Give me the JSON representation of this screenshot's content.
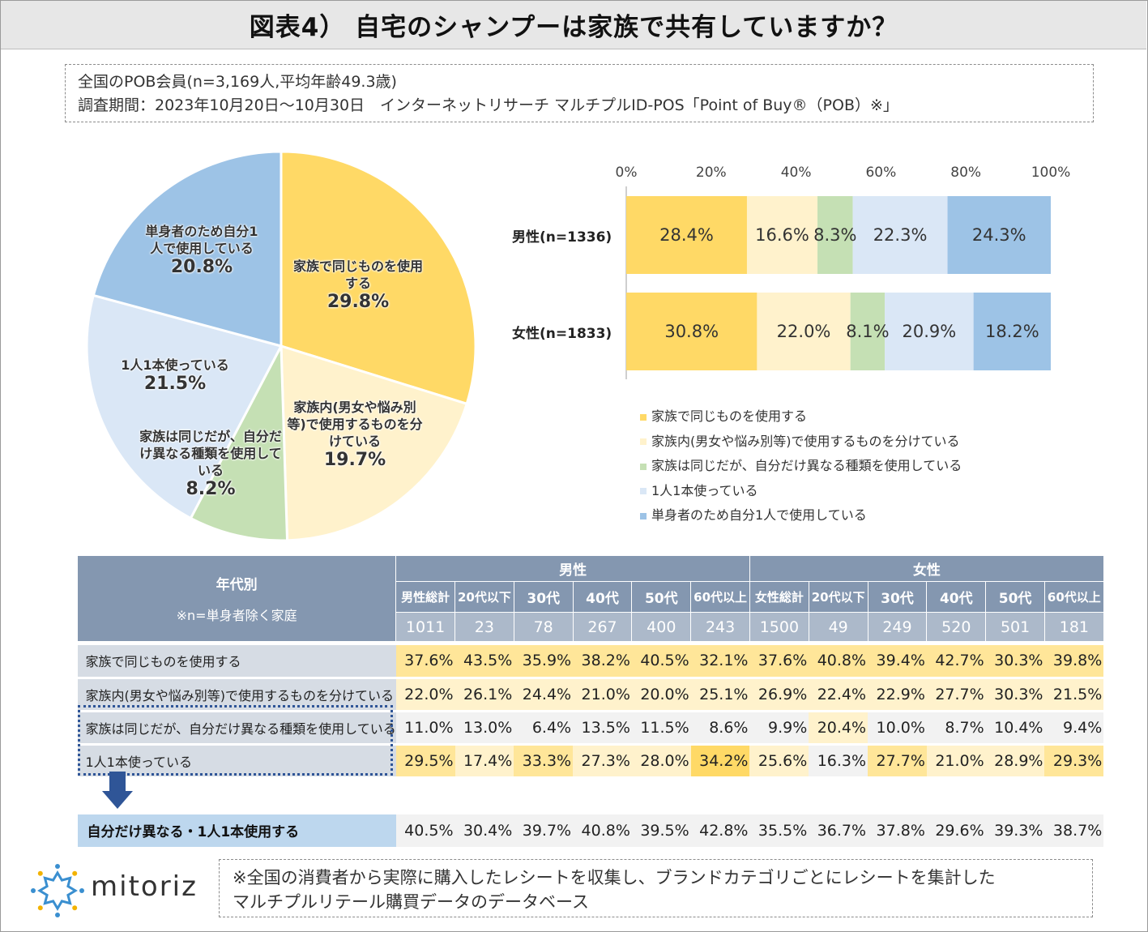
{
  "title": "図表4） 自宅のシャンプーは家族で共有していますか？",
  "info": {
    "line1": "全国のPOB会員(n=3,169人,平均年齢49.3歳)",
    "line2": "調査期間：2023年10月20日～10月30日　インターネットリサーチ マルチプルID-POS「Point of Buy®（POB）※」"
  },
  "colors": {
    "c1": "#ffd966",
    "c2": "#fff2cc",
    "c3": "#c5e0b4",
    "c4": "#dae7f6",
    "c5": "#9dc3e6",
    "header": "#8497b0",
    "subheader": "#acb9ca",
    "rowlabel": "#d6dce4",
    "summarylabel": "#bdd7ee",
    "arrow": "#2f5597"
  },
  "chart_data": [
    {
      "type": "pie",
      "slices": [
        {
          "label": "家族で同じものを使用する",
          "value": 29.8,
          "value_label": "29.8%"
        },
        {
          "label": "家族内(男女や悩み別等)で使用するものを分けている",
          "value": 19.7,
          "value_label": "19.7%"
        },
        {
          "label": "家族は同じだが、自分だけ異なる種類を使用している",
          "value": 8.2,
          "value_label": "8.2%"
        },
        {
          "label": "1人1本使っている",
          "value": 21.5,
          "value_label": "21.5%"
        },
        {
          "label": "単身者のため自分1人で使用している",
          "value": 20.8,
          "value_label": "20.8%"
        }
      ]
    },
    {
      "type": "bar",
      "orientation": "horizontal",
      "stacked": "percent",
      "categories": [
        "男性(n=1336)",
        "女性(n=1833)"
      ],
      "xlim": [
        0,
        100
      ],
      "x_ticks": [
        "0%",
        "20%",
        "40%",
        "60%",
        "80%",
        "100%"
      ],
      "legend_position": "bottom",
      "series": [
        {
          "name": "家族で同じものを使用する",
          "values": [
            28.4,
            30.8
          ]
        },
        {
          "name": "家族内(男女や悩み別等)で使用するものを分けている",
          "values": [
            16.6,
            22.0
          ]
        },
        {
          "name": "家族は同じだが、自分だけ異なる種類を使用している",
          "values": [
            8.3,
            8.1
          ]
        },
        {
          "name": "1人1本使っている",
          "values": [
            22.3,
            20.9
          ]
        },
        {
          "name": "単身者のため自分1人で使用している",
          "values": [
            24.3,
            18.2
          ]
        }
      ]
    },
    {
      "type": "table",
      "corner_title": "年代別",
      "corner_note": "※n=単身者除く家庭",
      "groups": [
        {
          "label": "男性",
          "columns": [
            "男性総計",
            "20代以下",
            "30代",
            "40代",
            "50代",
            "60代以上"
          ],
          "n": [
            "1011",
            "23",
            "78",
            "267",
            "400",
            "243"
          ]
        },
        {
          "label": "女性",
          "columns": [
            "女性総計",
            "20代以下",
            "30代",
            "40代",
            "50代",
            "60代以上"
          ],
          "n": [
            "1500",
            "49",
            "249",
            "520",
            "501",
            "181"
          ]
        }
      ],
      "rows": [
        {
          "label": "家族で同じものを使用する",
          "values": [
            "37.6%",
            "43.5%",
            "35.9%",
            "38.2%",
            "40.5%",
            "32.1%",
            "37.6%",
            "40.8%",
            "39.4%",
            "42.7%",
            "30.3%",
            "39.8%"
          ],
          "shade": [
            2,
            2,
            2,
            2,
            2,
            2,
            2,
            2,
            2,
            2,
            2,
            2
          ]
        },
        {
          "label": "家族内(男女や悩み別等)で使用するものを分けている",
          "values": [
            "22.0%",
            "26.1%",
            "24.4%",
            "21.0%",
            "20.0%",
            "25.1%",
            "26.9%",
            "22.4%",
            "22.9%",
            "27.7%",
            "30.3%",
            "21.5%"
          ],
          "shade": [
            1,
            1,
            1,
            1,
            1,
            1,
            1,
            1,
            1,
            1,
            1,
            1
          ]
        },
        {
          "label": "家族は同じだが、自分だけ異なる種類を使用している",
          "values": [
            "11.0%",
            "13.0%",
            "6.4%",
            "13.5%",
            "11.5%",
            "8.6%",
            "9.9%",
            "20.4%",
            "10.0%",
            "8.7%",
            "10.4%",
            "9.4%"
          ],
          "shade": [
            0,
            0,
            0,
            0,
            0,
            0,
            0,
            1,
            0,
            0,
            0,
            0
          ]
        },
        {
          "label": "1人1本使っている",
          "values": [
            "29.5%",
            "17.4%",
            "33.3%",
            "27.3%",
            "28.0%",
            "34.2%",
            "25.6%",
            "16.3%",
            "27.7%",
            "21.0%",
            "28.9%",
            "29.3%"
          ],
          "shade": [
            2,
            1,
            2,
            1,
            1,
            3,
            1,
            0,
            2,
            1,
            1,
            2
          ]
        }
      ],
      "summary": {
        "label": "自分だけ異なる・1人1本使用する",
        "values": [
          "40.5%",
          "30.4%",
          "39.7%",
          "40.8%",
          "39.5%",
          "42.8%",
          "35.5%",
          "36.7%",
          "37.8%",
          "29.6%",
          "39.3%",
          "38.7%"
        ]
      }
    }
  ],
  "logo_text": "mitoriz",
  "note": {
    "line1": "※全国の消費者から実際に購入したレシートを収集し、ブランドカテゴリごとにレシートを集計した",
    "line2": "マルチプルリテール購買データのデータベース"
  }
}
